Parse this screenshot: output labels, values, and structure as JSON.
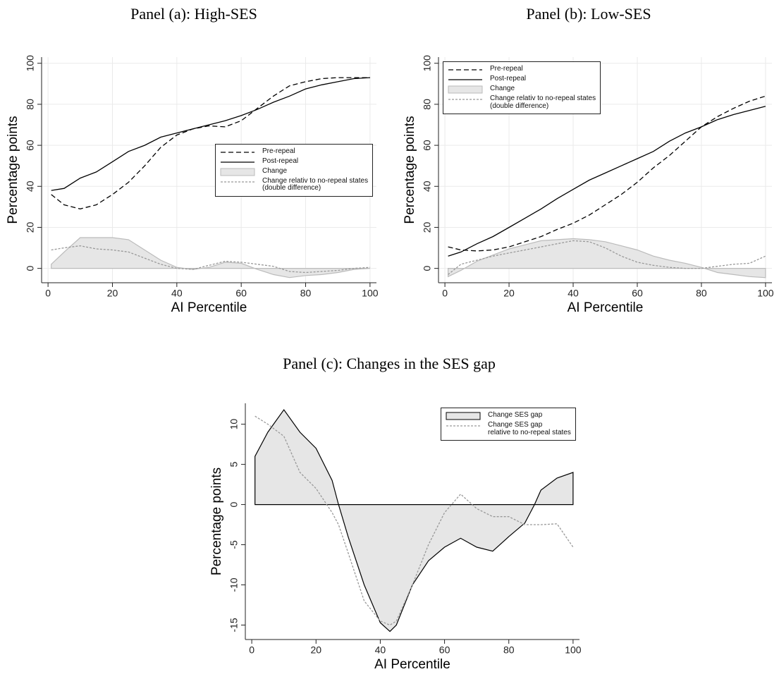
{
  "chart_data": [
    {
      "type": "line",
      "title": "Panel (a): High-SES",
      "xlabel": "AI Percentile",
      "ylabel": "Percentage points",
      "x": [
        1,
        5,
        10,
        15,
        20,
        25,
        30,
        35,
        40,
        45,
        50,
        55,
        60,
        65,
        70,
        75,
        80,
        85,
        90,
        95,
        100
      ],
      "series": [
        {
          "name": "Pre-repeal",
          "style": "dashed",
          "color": "#000000",
          "values": [
            36,
            31,
            29,
            31,
            36,
            42,
            50,
            59,
            65,
            68,
            69.5,
            69,
            72,
            78,
            84,
            89,
            91,
            92.5,
            93,
            93,
            93
          ]
        },
        {
          "name": "Post-repeal",
          "style": "solid",
          "color": "#000000",
          "values": [
            38,
            39,
            44,
            47,
            52,
            57,
            60,
            64,
            66,
            68,
            70,
            72,
            74.5,
            77.5,
            81,
            84,
            87.5,
            89.5,
            91,
            92.5,
            93
          ]
        },
        {
          "name": "Change",
          "style": "area",
          "color": "#e6e6e6",
          "edgecolor": "#bbbbbb",
          "values": [
            2,
            8,
            15,
            15,
            15,
            14,
            9,
            4,
            0.5,
            -0.5,
            0.5,
            3,
            2.5,
            -0.5,
            -3,
            -4.5,
            -3.5,
            -3,
            -2,
            -0.5,
            0
          ]
        },
        {
          "name": "Change relativ to no-repeal states\n(double difference)",
          "style": "dotted",
          "color": "#999999",
          "values": [
            9,
            10,
            11,
            9.5,
            9,
            8,
            5,
            2,
            0,
            -0.5,
            1.5,
            3.5,
            3,
            2,
            1,
            -1.5,
            -2,
            -1.5,
            -1,
            0,
            0.5
          ]
        }
      ],
      "xlim": [
        -2,
        102
      ],
      "ylim": [
        -7,
        103
      ],
      "xticks": [
        0,
        20,
        40,
        60,
        80,
        100
      ],
      "yticks": [
        0,
        20,
        40,
        60,
        80,
        100
      ],
      "grid": true,
      "legend": "center right"
    },
    {
      "type": "line",
      "title": "Panel (b): Low-SES",
      "xlabel": "AI Percentile",
      "ylabel": "Percentage points",
      "x": [
        1,
        5,
        10,
        15,
        20,
        25,
        30,
        35,
        40,
        45,
        50,
        55,
        60,
        65,
        70,
        75,
        80,
        85,
        90,
        95,
        100
      ],
      "series": [
        {
          "name": "Pre-repeal",
          "style": "dashed",
          "color": "#000000",
          "values": [
            10.5,
            9,
            8.5,
            9,
            10.5,
            13,
            15.5,
            19,
            22,
            26,
            31,
            36,
            42,
            49,
            55,
            62,
            69,
            74,
            78,
            81.5,
            84
          ]
        },
        {
          "name": "Post-repeal",
          "style": "solid",
          "color": "#000000",
          "values": [
            6,
            8,
            12,
            15.5,
            20,
            24.5,
            29,
            34,
            38.5,
            43,
            46.5,
            50,
            53.5,
            57,
            62,
            66,
            69,
            72.5,
            75,
            77,
            79
          ]
        },
        {
          "name": "Change",
          "style": "area",
          "color": "#e6e6e6",
          "edgecolor": "#bbbbbb",
          "values": [
            -4,
            -1,
            3.5,
            6.5,
            9.5,
            11.5,
            13.5,
            14,
            14.5,
            14,
            13,
            11,
            9,
            6,
            4,
            2.5,
            0.5,
            -2,
            -3,
            -4,
            -4.5
          ]
        },
        {
          "name": "Change relativ to no-repeal states\n(double difference)",
          "style": "dotted",
          "color": "#999999",
          "values": [
            -3,
            2,
            4,
            6,
            7.5,
            9,
            10.5,
            12,
            13.5,
            13,
            10,
            6,
            3,
            1.5,
            0.5,
            0,
            0,
            1,
            2,
            2.5,
            6
          ]
        }
      ],
      "xlim": [
        -2,
        102
      ],
      "ylim": [
        -7,
        103
      ],
      "xticks": [
        0,
        20,
        40,
        60,
        80,
        100
      ],
      "yticks": [
        0,
        20,
        40,
        60,
        80,
        100
      ],
      "grid": true,
      "legend": "upper left"
    },
    {
      "type": "line",
      "title": "Panel (c): Changes in the SES gap",
      "xlabel": "AI Percentile",
      "ylabel": "Percentage points",
      "x": [
        1,
        5,
        10,
        15,
        20,
        25,
        27,
        30,
        35,
        40,
        43,
        45,
        50,
        55,
        60,
        65,
        70,
        75,
        80,
        85,
        88,
        90,
        95,
        100
      ],
      "series": [
        {
          "name": "Change SES gap",
          "style": "area",
          "color": "#e6e6e6",
          "edgecolor": "#000000",
          "values": [
            6,
            9,
            11.8,
            9,
            7,
            3,
            0,
            -4,
            -10,
            -14.7,
            -15.8,
            -15,
            -10,
            -7,
            -5.3,
            -4.2,
            -5.3,
            -5.8,
            -4,
            -2.3,
            0,
            1.8,
            3.3,
            4
          ]
        },
        {
          "name": "Change SES gap\nrelative to no-repeal states",
          "style": "dotted",
          "color": "#999999",
          "values": [
            11,
            10,
            8.5,
            4,
            2,
            -1,
            -2.5,
            -6,
            -12,
            -14.5,
            -15,
            -14.5,
            -10,
            -5,
            -1,
            1.3,
            -0.5,
            -1.5,
            -1.5,
            -2.5,
            -2.5,
            -2.5,
            -2.4,
            -5.3
          ]
        }
      ],
      "xlim": [
        -2,
        102
      ],
      "ylim": [
        -16.8,
        12.6
      ],
      "xticks": [
        0,
        20,
        40,
        60,
        80,
        100
      ],
      "yticks": [
        -15,
        -10,
        -5,
        0,
        5,
        10
      ],
      "grid": false,
      "legend": "upper right"
    }
  ]
}
